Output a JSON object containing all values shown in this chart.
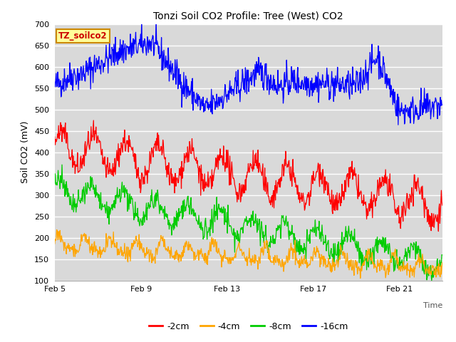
{
  "title": "Tonzi Soil CO2 Profile: Tree (West) CO2",
  "ylabel": "Soil CO2 (mV)",
  "xlabel": "Time",
  "ylim": [
    100,
    700
  ],
  "yticks": [
    100,
    150,
    200,
    250,
    300,
    350,
    400,
    450,
    500,
    550,
    600,
    650,
    700
  ],
  "xtick_labels": [
    "Feb 5",
    "Feb 9",
    "Feb 13",
    "Feb 17",
    "Feb 21"
  ],
  "xtick_positions": [
    0,
    4,
    8,
    12,
    16
  ],
  "n_days": 18,
  "background_color": "#d9d9d9",
  "grid_color": "#ffffff",
  "label_box_color": "#ffff99",
  "label_box_edge": "#cc8800",
  "label_text": "TZ_soilco2",
  "legend_entries": [
    {
      "label": "-2cm",
      "color": "#ff0000"
    },
    {
      "label": "-4cm",
      "color": "#ffa500"
    },
    {
      "label": "-8cm",
      "color": "#00cc00"
    },
    {
      "label": "-16cm",
      "color": "#0000ff"
    }
  ]
}
